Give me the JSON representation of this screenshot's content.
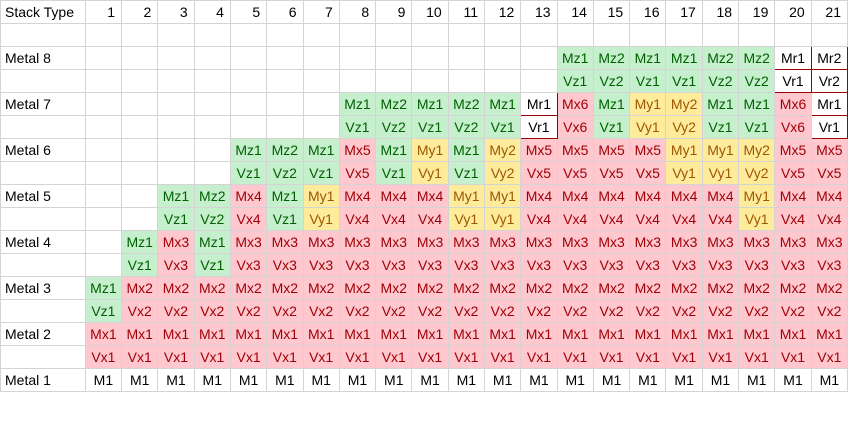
{
  "header": {
    "label": "Stack Type",
    "columns": [
      "1",
      "2",
      "3",
      "4",
      "5",
      "6",
      "7",
      "8",
      "9",
      "10",
      "11",
      "12",
      "13",
      "14",
      "15",
      "16",
      "17",
      "18",
      "19",
      "20",
      "21"
    ]
  },
  "colors": {
    "green_fill": "#c6efce",
    "green_text": "#006100",
    "red_fill": "#ffc7ce",
    "red_text": "#9c0006",
    "yellow_fill": "#ffeb9c",
    "yellow_text": "#9c5700",
    "outlined_border": "#9c0006"
  },
  "legend_codes": {
    "z": "green fill",
    "x": "red fill",
    "y": "yellow fill",
    "r": "white with red border",
    "n": "no fill"
  },
  "rows": [
    {
      "label": "",
      "cells": [
        "",
        "",
        "",
        "",
        "",
        "",
        "",
        "",
        "",
        "",
        "",
        "",
        "",
        "",
        "",
        "",
        "",
        "",
        "",
        "",
        ""
      ],
      "styles": ""
    },
    {
      "label": "Metal 8",
      "cells": [
        "",
        "",
        "",
        "",
        "",
        "",
        "",
        "",
        "",
        "",
        "",
        "",
        "",
        "Mz1",
        "Mz2",
        "Mz1",
        "Mz1",
        "Mz2",
        "Mz2",
        "Mr1",
        "Mr2"
      ],
      "styles": ".............zzzzzzrr"
    },
    {
      "label": "",
      "cells": [
        "",
        "",
        "",
        "",
        "",
        "",
        "",
        "",
        "",
        "",
        "",
        "",
        "",
        "Vz1",
        "Vz2",
        "Vz1",
        "Vz1",
        "Vz2",
        "Vz2",
        "Vr1",
        "Vr2"
      ],
      "styles": ".............zzzzzzrr"
    },
    {
      "label": "Metal 7",
      "cells": [
        "",
        "",
        "",
        "",
        "",
        "",
        "",
        "Mz1",
        "Mz2",
        "Mz1",
        "Mz2",
        "Mz1",
        "Mr1",
        "Mx6",
        "Mz1",
        "My1",
        "My2",
        "Mz1",
        "Mz1",
        "Mx6",
        "Mr1"
      ],
      "styles": ".......zzzzzrxzyyzzxr"
    },
    {
      "label": "",
      "cells": [
        "",
        "",
        "",
        "",
        "",
        "",
        "",
        "Vz1",
        "Vz2",
        "Vz1",
        "Vz2",
        "Vz1",
        "Vr1",
        "Vx6",
        "Vz1",
        "Vy1",
        "Vy2",
        "Vz1",
        "Vz1",
        "Vx6",
        "Vr1"
      ],
      "styles": ".......zzzzzrxzyyzzxr"
    },
    {
      "label": "Metal 6",
      "cells": [
        "",
        "",
        "",
        "",
        "Mz1",
        "Mz2",
        "Mz1",
        "Mx5",
        "Mz1",
        "My1",
        "Mz1",
        "My2",
        "Mx5",
        "Mx5",
        "Mx5",
        "Mx5",
        "My1",
        "My1",
        "My2",
        "Mx5",
        "Mx5"
      ],
      "styles": "....zzzxzyzyxxxxyyyxx"
    },
    {
      "label": "",
      "cells": [
        "",
        "",
        "",
        "",
        "Vz1",
        "Vz2",
        "Vz1",
        "Vx5",
        "Vz1",
        "Vy1",
        "Vz1",
        "Vy2",
        "Vx5",
        "Vx5",
        "Vx5",
        "Vx5",
        "Vy1",
        "Vy1",
        "Vy2",
        "Vx5",
        "Vx5"
      ],
      "styles": "....zzzxzyzyxxxxyyyxx"
    },
    {
      "label": "Metal 5",
      "cells": [
        "",
        "",
        "Mz1",
        "Mz2",
        "Mx4",
        "Mz1",
        "My1",
        "Mx4",
        "Mx4",
        "Mx4",
        "My1",
        "My1",
        "Mx4",
        "Mx4",
        "Mx4",
        "Mx4",
        "Mx4",
        "Mx4",
        "My1",
        "Mx4",
        "Mx4"
      ],
      "styles": "..zzxzyxxxyyxxxxxxyxx"
    },
    {
      "label": "",
      "cells": [
        "",
        "",
        "Vz1",
        "Vz2",
        "Vx4",
        "Vz1",
        "Vy1",
        "Vx4",
        "Vx4",
        "Vx4",
        "Vy1",
        "Vy1",
        "Vx4",
        "Vx4",
        "Vx4",
        "Vx4",
        "Vx4",
        "Vx4",
        "Vy1",
        "Vx4",
        "Vx4"
      ],
      "styles": "..zzxzyxxxyyxxxxxxyxx"
    },
    {
      "label": "Metal 4",
      "cells": [
        "",
        "Mz1",
        "Mx3",
        "Mz1",
        "Mx3",
        "Mx3",
        "Mx3",
        "Mx3",
        "Mx3",
        "Mx3",
        "Mx3",
        "Mx3",
        "Mx3",
        "Mx3",
        "Mx3",
        "Mx3",
        "Mx3",
        "Mx3",
        "Mx3",
        "Mx3",
        "Mx3"
      ],
      "styles": ".zxzxxxxxxxxxxxxxxxxx"
    },
    {
      "label": "",
      "cells": [
        "",
        "Vz1",
        "Vx3",
        "Vz1",
        "Vx3",
        "Vx3",
        "Vx3",
        "Vx3",
        "Vx3",
        "Vx3",
        "Vx3",
        "Vx3",
        "Vx3",
        "Vx3",
        "Vx3",
        "Vx3",
        "Vx3",
        "Vx3",
        "Vx3",
        "Vx3",
        "Vx3"
      ],
      "styles": ".zxzxxxxxxxxxxxxxxxxx"
    },
    {
      "label": "Metal 3",
      "cells": [
        "Mz1",
        "Mx2",
        "Mx2",
        "Mx2",
        "Mx2",
        "Mx2",
        "Mx2",
        "Mx2",
        "Mx2",
        "Mx2",
        "Mx2",
        "Mx2",
        "Mx2",
        "Mx2",
        "Mx2",
        "Mx2",
        "Mx2",
        "Mx2",
        "Mx2",
        "Mx2",
        "Mx2"
      ],
      "styles": "zxxxxxxxxxxxxxxxxxxxx"
    },
    {
      "label": "",
      "cells": [
        "Vz1",
        "Vx2",
        "Vx2",
        "Vx2",
        "Vx2",
        "Vx2",
        "Vx2",
        "Vx2",
        "Vx2",
        "Vx2",
        "Vx2",
        "Vx2",
        "Vx2",
        "Vx2",
        "Vx2",
        "Vx2",
        "Vx2",
        "Vx2",
        "Vx2",
        "Vx2",
        "Vx2"
      ],
      "styles": "zxxxxxxxxxxxxxxxxxxxx"
    },
    {
      "label": "Metal 2",
      "cells": [
        "Mx1",
        "Mx1",
        "Mx1",
        "Mx1",
        "Mx1",
        "Mx1",
        "Mx1",
        "Mx1",
        "Mx1",
        "Mx1",
        "Mx1",
        "Mx1",
        "Mx1",
        "Mx1",
        "Mx1",
        "Mx1",
        "Mx1",
        "Mx1",
        "Mx1",
        "Mx1",
        "Mx1"
      ],
      "styles": "xxxxxxxxxxxxxxxxxxxxx"
    },
    {
      "label": "",
      "cells": [
        "Vx1",
        "Vx1",
        "Vx1",
        "Vx1",
        "Vx1",
        "Vx1",
        "Vx1",
        "Vx1",
        "Vx1",
        "Vx1",
        "Vx1",
        "Vx1",
        "Vx1",
        "Vx1",
        "Vx1",
        "Vx1",
        "Vx1",
        "Vx1",
        "Vx1",
        "Vx1",
        "Vx1"
      ],
      "styles": "xxxxxxxxxxxxxxxxxxxxx"
    },
    {
      "label": "Metal 1",
      "cells": [
        "M1",
        "M1",
        "M1",
        "M1",
        "M1",
        "M1",
        "M1",
        "M1",
        "M1",
        "M1",
        "M1",
        "M1",
        "M1",
        "M1",
        "M1",
        "M1",
        "M1",
        "M1",
        "M1",
        "M1",
        "M1"
      ],
      "styles": "nnnnnnnnnnnnnnnnnnnnn"
    }
  ]
}
